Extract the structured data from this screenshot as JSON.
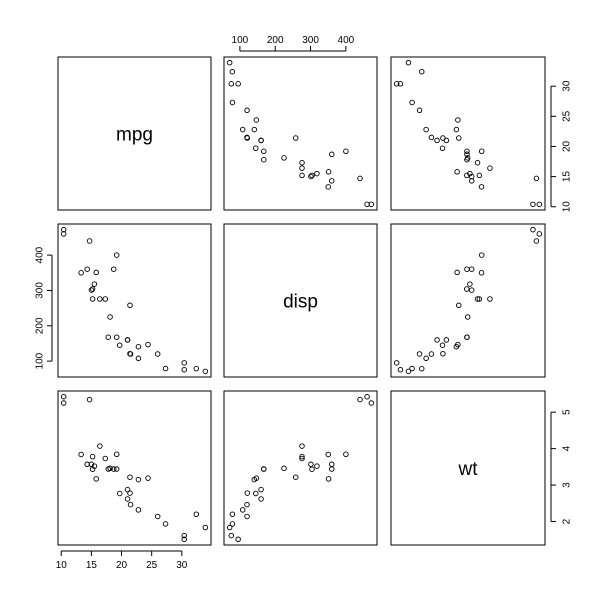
{
  "chart_data": {
    "type": "scatter",
    "variables": [
      "mpg",
      "disp",
      "wt"
    ],
    "ranges": {
      "mpg": [
        10.4,
        33.9
      ],
      "disp": [
        71.1,
        472
      ],
      "wt": [
        1.513,
        5.424
      ]
    },
    "ticks": {
      "mpg": [
        10,
        15,
        20,
        25,
        30
      ],
      "disp": [
        100,
        200,
        300,
        400
      ],
      "wt": [
        2,
        3,
        4,
        5
      ]
    },
    "tick_sides": {
      "top": "disp",
      "right_row0": "mpg",
      "right_row2": "wt",
      "left": "disp",
      "bottom": "mpg"
    },
    "grid": false,
    "legend": "none",
    "observations": [
      {
        "mpg": 21.0,
        "disp": 160.0,
        "wt": 2.62
      },
      {
        "mpg": 21.0,
        "disp": 160.0,
        "wt": 2.875
      },
      {
        "mpg": 22.8,
        "disp": 108.0,
        "wt": 2.32
      },
      {
        "mpg": 21.4,
        "disp": 258.0,
        "wt": 3.215
      },
      {
        "mpg": 18.7,
        "disp": 360.0,
        "wt": 3.44
      },
      {
        "mpg": 18.1,
        "disp": 225.0,
        "wt": 3.46
      },
      {
        "mpg": 14.3,
        "disp": 360.0,
        "wt": 3.57
      },
      {
        "mpg": 24.4,
        "disp": 146.7,
        "wt": 3.19
      },
      {
        "mpg": 22.8,
        "disp": 140.8,
        "wt": 3.15
      },
      {
        "mpg": 19.2,
        "disp": 167.6,
        "wt": 3.44
      },
      {
        "mpg": 17.8,
        "disp": 167.6,
        "wt": 3.44
      },
      {
        "mpg": 16.4,
        "disp": 275.8,
        "wt": 4.07
      },
      {
        "mpg": 17.3,
        "disp": 275.8,
        "wt": 3.73
      },
      {
        "mpg": 15.2,
        "disp": 275.8,
        "wt": 3.78
      },
      {
        "mpg": 10.4,
        "disp": 472.0,
        "wt": 5.25
      },
      {
        "mpg": 10.4,
        "disp": 460.0,
        "wt": 5.424
      },
      {
        "mpg": 14.7,
        "disp": 440.0,
        "wt": 5.345
      },
      {
        "mpg": 32.4,
        "disp": 78.7,
        "wt": 2.2
      },
      {
        "mpg": 30.4,
        "disp": 75.7,
        "wt": 1.615
      },
      {
        "mpg": 33.9,
        "disp": 71.1,
        "wt": 1.835
      },
      {
        "mpg": 21.5,
        "disp": 120.1,
        "wt": 2.465
      },
      {
        "mpg": 15.5,
        "disp": 318.0,
        "wt": 3.52
      },
      {
        "mpg": 15.2,
        "disp": 304.0,
        "wt": 3.435
      },
      {
        "mpg": 13.3,
        "disp": 350.0,
        "wt": 3.84
      },
      {
        "mpg": 19.2,
        "disp": 400.0,
        "wt": 3.845
      },
      {
        "mpg": 27.3,
        "disp": 79.0,
        "wt": 1.935
      },
      {
        "mpg": 26.0,
        "disp": 120.3,
        "wt": 2.14
      },
      {
        "mpg": 30.4,
        "disp": 95.1,
        "wt": 1.513
      },
      {
        "mpg": 15.8,
        "disp": 351.0,
        "wt": 3.17
      },
      {
        "mpg": 19.7,
        "disp": 145.0,
        "wt": 2.77
      },
      {
        "mpg": 15.0,
        "disp": 301.0,
        "wt": 3.57
      },
      {
        "mpg": 21.4,
        "disp": 121.0,
        "wt": 2.78
      }
    ]
  }
}
